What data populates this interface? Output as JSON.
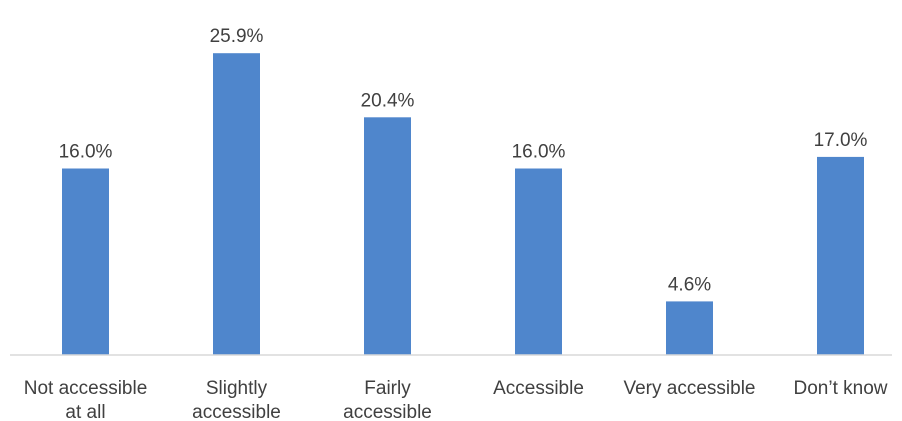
{
  "chart_data": {
    "type": "bar",
    "categories": [
      [
        "Not accessible",
        "at all"
      ],
      [
        "Slightly",
        "accessible"
      ],
      [
        "Fairly",
        "accessible"
      ],
      [
        "Accessible"
      ],
      [
        "Very accessible"
      ],
      [
        "Don’t know"
      ]
    ],
    "values": [
      16.0,
      25.9,
      20.4,
      16.0,
      4.6,
      17.0
    ],
    "value_labels": [
      "16.0%",
      "25.9%",
      "20.4%",
      "16.0%",
      "4.6%",
      "17.0%"
    ],
    "title": "",
    "xlabel": "",
    "ylabel": "",
    "ylim": [
      0,
      26
    ],
    "grid": false,
    "legend": "none",
    "bar_color": "#4f86cc",
    "axis_color": "#d9d9d9",
    "text_color": "#404040"
  }
}
